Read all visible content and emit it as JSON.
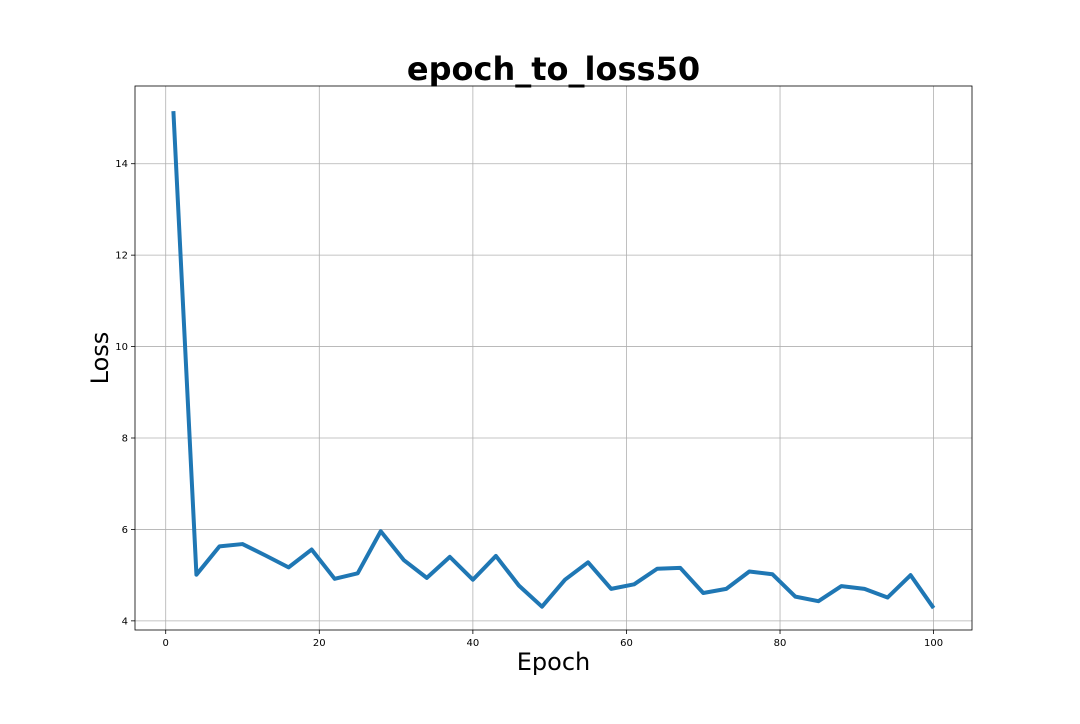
{
  "chart_data": {
    "type": "line",
    "title": "epoch_to_loss50",
    "xlabel": "Epoch",
    "ylabel": "Loss",
    "xlim": [
      -4,
      105
    ],
    "ylim": [
      3.8,
      15.7
    ],
    "xticks": [
      0,
      20,
      40,
      60,
      80,
      100
    ],
    "xtick_labels": [
      "0",
      "20",
      "40",
      "60",
      "80",
      "100"
    ],
    "yticks": [
      4,
      6,
      8,
      10,
      12,
      14
    ],
    "ytick_labels": [
      "4",
      "6",
      "8",
      "10",
      "12",
      "14"
    ],
    "grid": true,
    "color": "#1f77b4",
    "x": [
      1,
      4,
      7,
      10,
      13,
      16,
      19,
      22,
      25,
      28,
      31,
      34,
      37,
      40,
      43,
      46,
      49,
      52,
      55,
      58,
      61,
      64,
      67,
      70,
      73,
      76,
      79,
      82,
      85,
      88,
      91,
      94,
      97,
      100
    ],
    "y": [
      15.15,
      5.01,
      5.63,
      5.68,
      5.43,
      5.17,
      5.56,
      4.92,
      5.04,
      5.96,
      5.33,
      4.94,
      5.4,
      4.9,
      5.42,
      4.77,
      4.31,
      4.9,
      5.28,
      4.7,
      4.8,
      5.14,
      5.16,
      4.61,
      4.7,
      5.08,
      5.02,
      4.53,
      4.43,
      4.76,
      4.7,
      4.51,
      5.0,
      4.28
    ]
  }
}
